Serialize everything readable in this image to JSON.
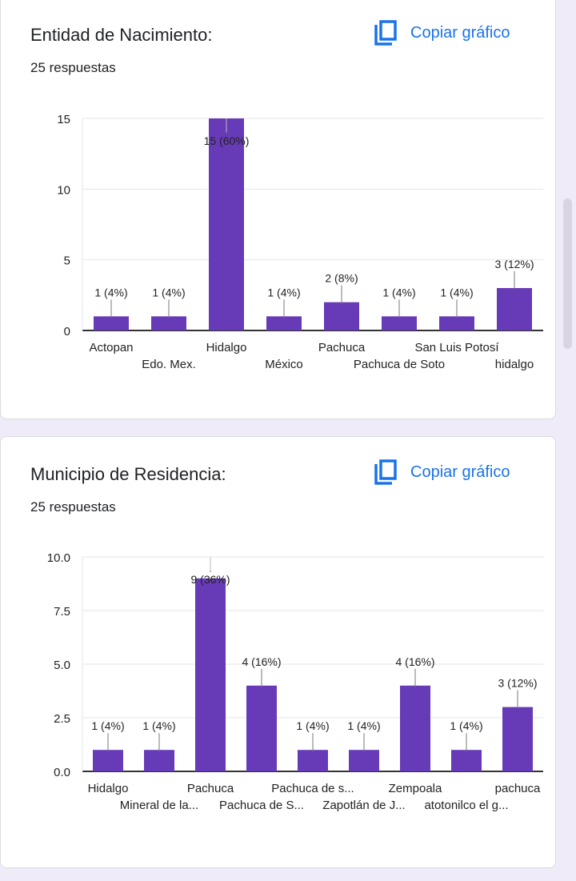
{
  "copy_label": "Copiar gráfico",
  "chart_data": [
    {
      "type": "bar",
      "title": "Entidad de Nacimiento:",
      "responses": "25 respuestas",
      "categories": [
        "Actopan",
        "Edo. Mex.",
        "Hidalgo",
        "México",
        "Pachuca",
        "Pachuca de Soto",
        "San Luis Potosí",
        "hidalgo"
      ],
      "values": [
        1,
        1,
        15,
        1,
        2,
        1,
        1,
        3
      ],
      "data_labels": [
        "1 (4%)",
        "1 (4%)",
        "15 (60%)",
        "1 (4%)",
        "2 (8%)",
        "1 (4%)",
        "1 (4%)",
        "3 (12%)"
      ],
      "yticks": [
        "0",
        "5",
        "10",
        "15"
      ],
      "ylim": [
        0,
        15
      ],
      "color": "#673ab7"
    },
    {
      "type": "bar",
      "title": "Municipio de Residencia:",
      "responses": "25 respuestas",
      "categories": [
        "Hidalgo",
        "Mineral de la...",
        "Pachuca",
        "Pachuca de S...",
        "Pachuca de s...",
        "Zapotlán de J...",
        "Zempoala",
        "atotonilco el g...",
        "pachuca"
      ],
      "values": [
        1,
        1,
        9,
        4,
        1,
        1,
        4,
        1,
        3
      ],
      "data_labels": [
        "1 (4%)",
        "1 (4%)",
        "9 (36%)",
        "4 (16%)",
        "1 (4%)",
        "1 (4%)",
        "4 (16%)",
        "1 (4%)",
        "3 (12%)"
      ],
      "yticks": [
        "0.0",
        "2.5",
        "5.0",
        "7.5",
        "10.0"
      ],
      "ylim": [
        0,
        10
      ],
      "color": "#673ab7"
    }
  ]
}
